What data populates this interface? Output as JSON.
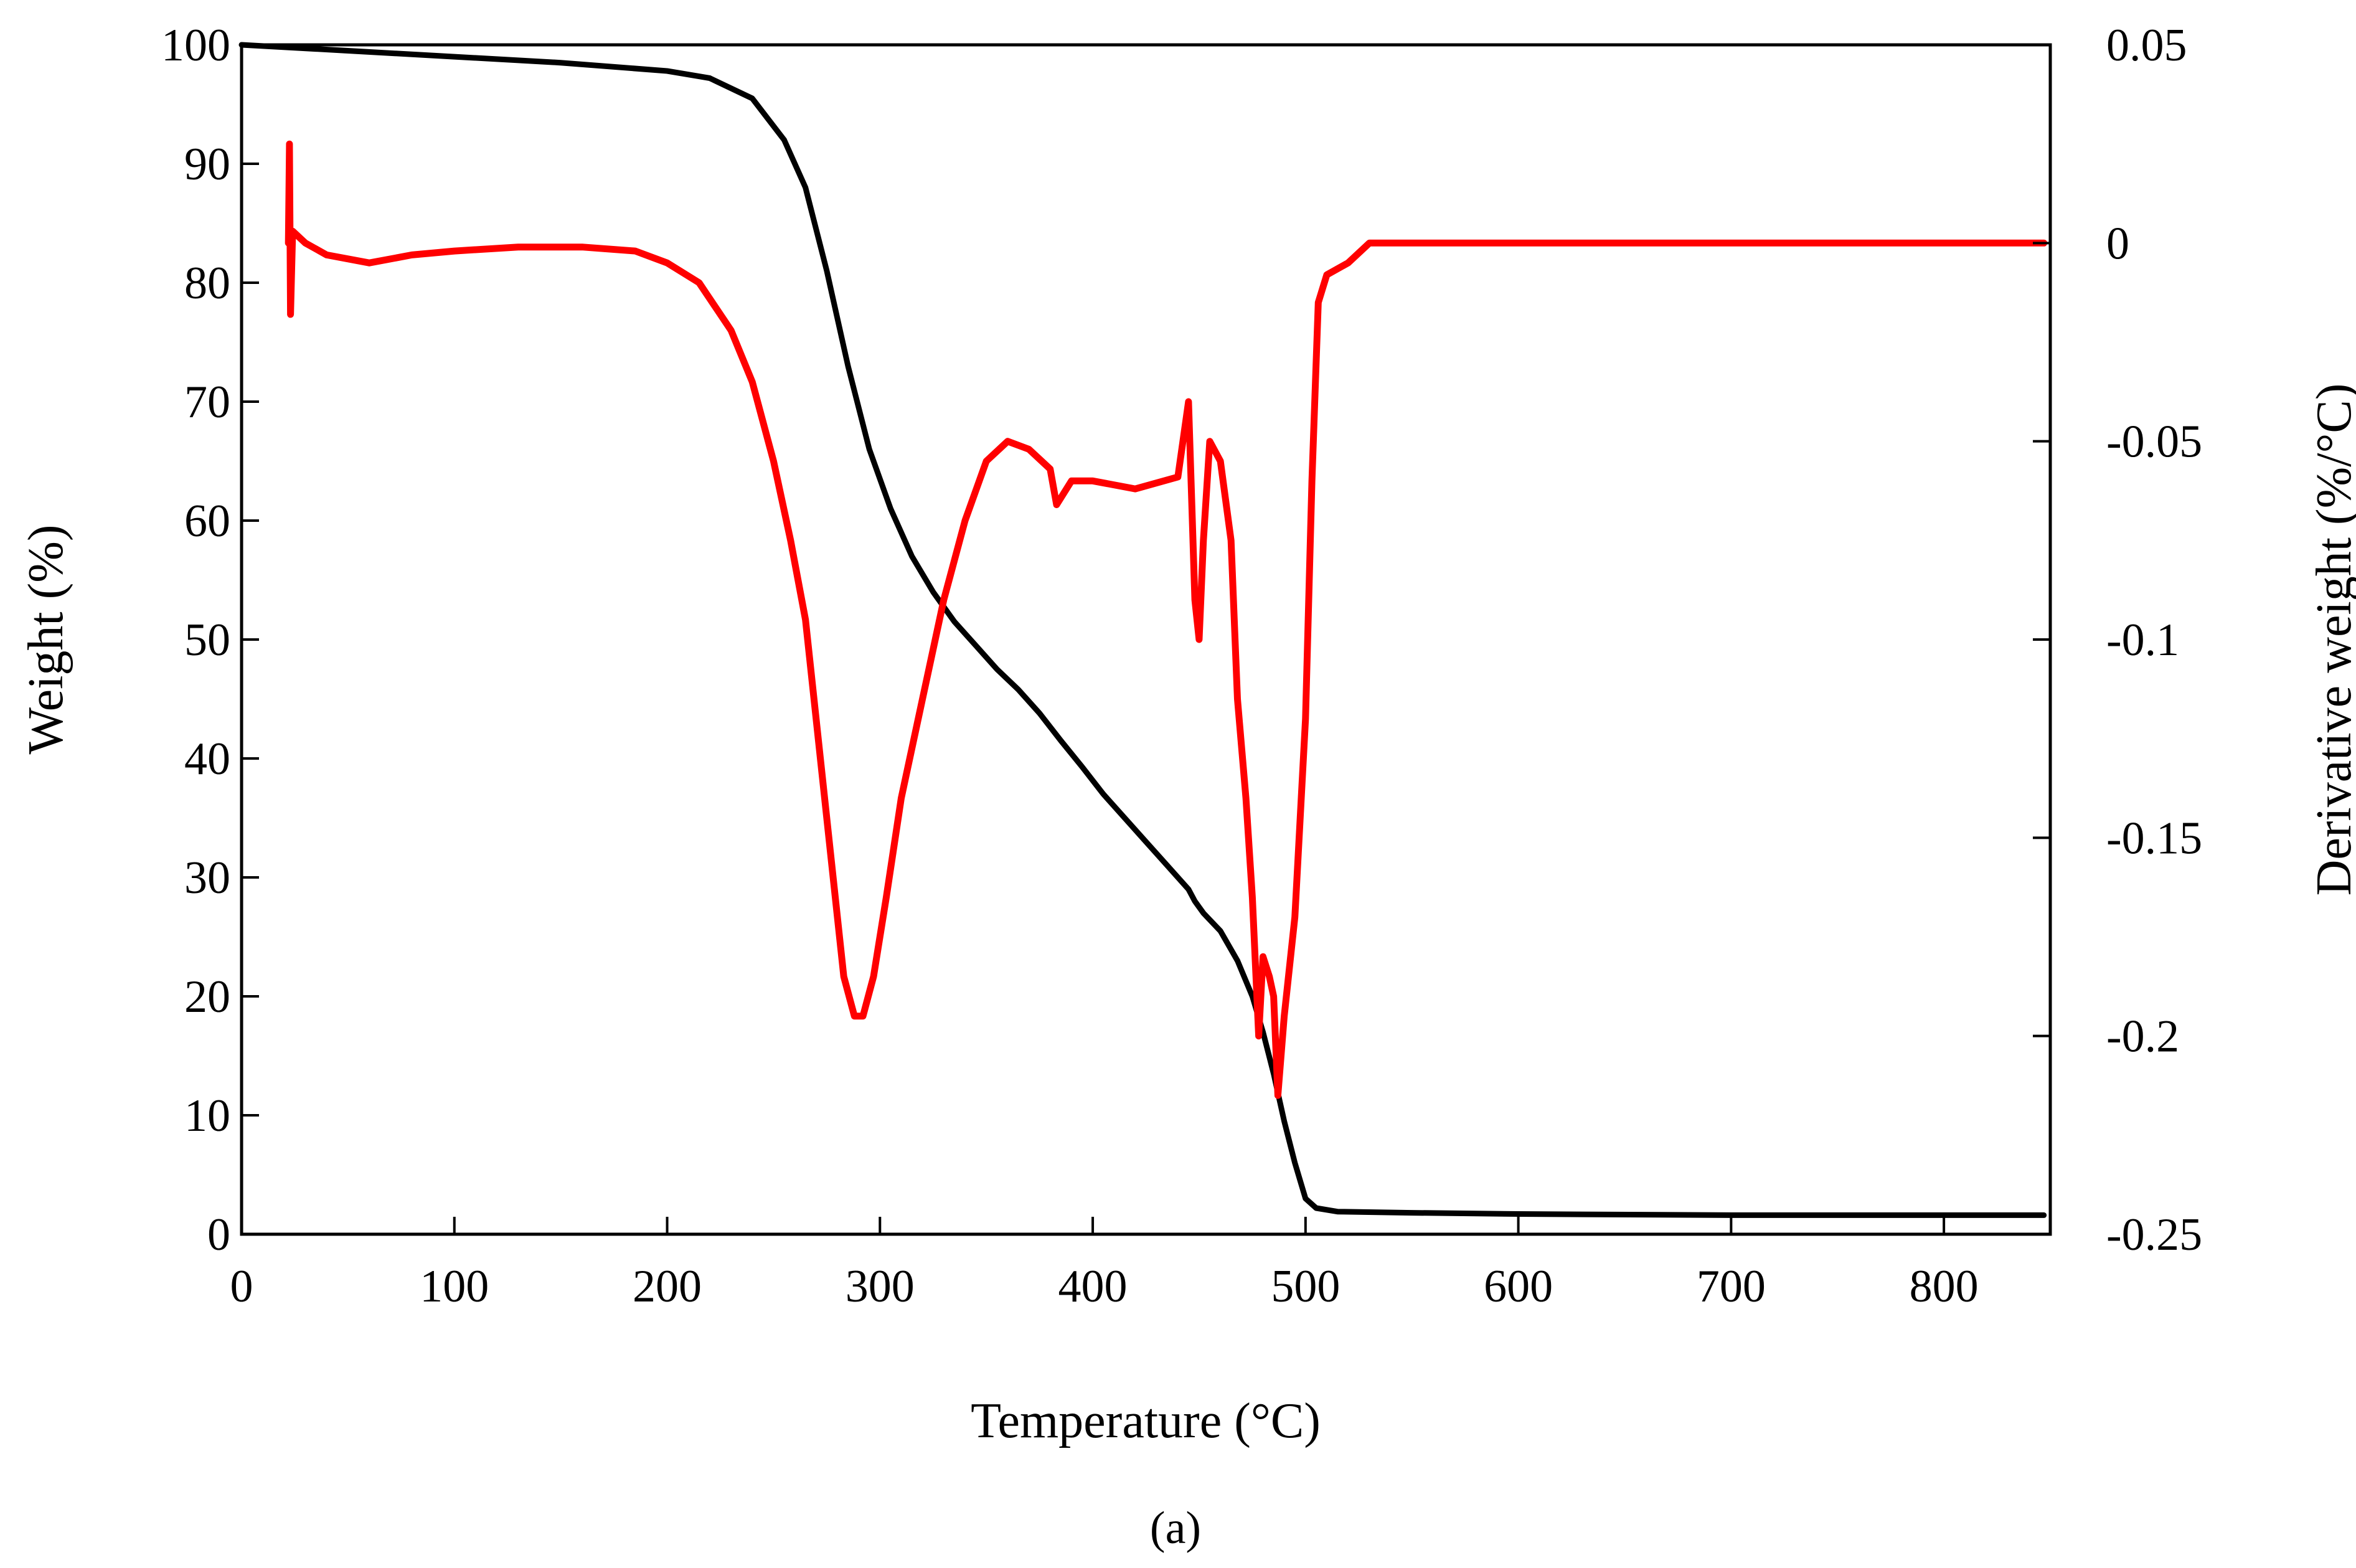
{
  "chart_data": {
    "type": "line",
    "title": "",
    "caption": "(a)",
    "caption_letter": "a",
    "xlabel": "Temperature (°C)",
    "ylabel": "Weight (%)",
    "y2label": "Derivative weight (%/°C)",
    "xlim": [
      0,
      850
    ],
    "ylim": [
      0,
      100
    ],
    "y2lim": [
      -0.25,
      0.05
    ],
    "x_ticks": [
      "0",
      "100",
      "200",
      "300",
      "400",
      "500",
      "600",
      "700",
      "800"
    ],
    "y_ticks": [
      "0",
      "10",
      "20",
      "30",
      "40",
      "50",
      "60",
      "70",
      "80",
      "90",
      "100"
    ],
    "y2_ticks": [
      "-0.25",
      "-0.2",
      "-0.15",
      "-0.1",
      "-0.05",
      "0",
      "0.05"
    ],
    "grid": false,
    "series": [
      {
        "name": "Weight",
        "axis": "left",
        "color": "#000000",
        "x": [
          0,
          50,
          100,
          150,
          200,
          220,
          240,
          255,
          265,
          275,
          285,
          295,
          305,
          315,
          325,
          335,
          345,
          355,
          365,
          375,
          385,
          395,
          405,
          415,
          425,
          435,
          445,
          448,
          452,
          460,
          468,
          475,
          480,
          485,
          490,
          495,
          500,
          505,
          515,
          550,
          600,
          700,
          800,
          847
        ],
        "values": [
          100,
          99.5,
          99,
          98.5,
          97.8,
          97.2,
          95.5,
          92,
          88,
          81,
          73,
          66,
          61,
          57,
          54,
          51.5,
          49.5,
          47.5,
          45.8,
          43.8,
          41.5,
          39.3,
          37,
          35,
          33,
          31,
          29,
          28,
          27,
          25.5,
          23,
          20,
          17,
          13.5,
          9.5,
          6,
          3,
          2.2,
          1.9,
          1.8,
          1.7,
          1.6,
          1.6,
          1.6
        ]
      },
      {
        "name": "Derivative weight",
        "axis": "right",
        "color": "#ff0000",
        "x": [
          22,
          22.5,
          23,
          24,
          30,
          40,
          60,
          80,
          100,
          130,
          160,
          185,
          200,
          215,
          230,
          240,
          250,
          258,
          265,
          272,
          278,
          283,
          288,
          292,
          297,
          303,
          310,
          320,
          330,
          340,
          350,
          360,
          370,
          380,
          383,
          390,
          400,
          420,
          440,
          445,
          448,
          450,
          452,
          455,
          460,
          465,
          468,
          472,
          475,
          478,
          480,
          483,
          485,
          487,
          490,
          495,
          500,
          503,
          506,
          510,
          520,
          530,
          560,
          600,
          650,
          700,
          750,
          800,
          847
        ],
        "values": [
          0,
          0.025,
          -0.018,
          0.003,
          0,
          -0.003,
          -0.005,
          -0.003,
          -0.002,
          -0.001,
          -0.001,
          -0.002,
          -0.005,
          -0.01,
          -0.022,
          -0.035,
          -0.055,
          -0.075,
          -0.095,
          -0.13,
          -0.16,
          -0.185,
          -0.195,
          -0.195,
          -0.185,
          -0.165,
          -0.14,
          -0.115,
          -0.09,
          -0.07,
          -0.055,
          -0.05,
          -0.052,
          -0.057,
          -0.066,
          -0.06,
          -0.06,
          -0.062,
          -0.059,
          -0.04,
          -0.09,
          -0.1,
          -0.075,
          -0.05,
          -0.055,
          -0.075,
          -0.115,
          -0.14,
          -0.165,
          -0.2,
          -0.18,
          -0.185,
          -0.19,
          -0.215,
          -0.195,
          -0.17,
          -0.12,
          -0.06,
          -0.015,
          -0.008,
          -0.005,
          0,
          0,
          0,
          0,
          0,
          0,
          0,
          0
        ]
      }
    ]
  }
}
